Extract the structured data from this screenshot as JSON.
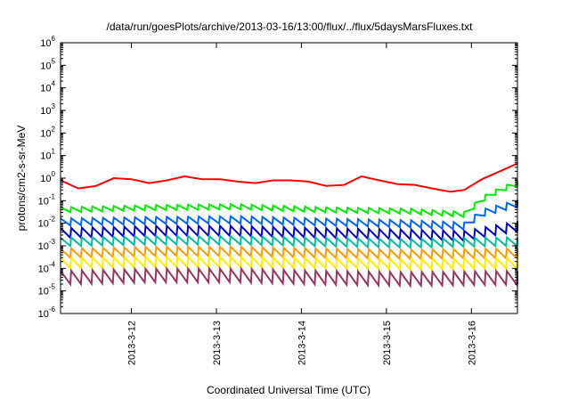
{
  "chart_data": {
    "type": "line",
    "title": "/data/run/goesPlots/archive/2013-03-16/13:00/flux/../flux/5daysMarsFluxes.txt",
    "xlabel": "Coordinated Universal Time (UTC)",
    "ylabel": "protons/cm2-s-sr-MeV",
    "yscale": "log",
    "ylim": [
      1e-06,
      1000000.0
    ],
    "xlim": [
      "2013-03-11 04:00",
      "2013-03-16 13:00"
    ],
    "grid": false,
    "legend": "none",
    "x_ticks": [
      "2013-3-12",
      "2013-3-13",
      "2013-3-14",
      "2013-3-15",
      "2013-3-16"
    ],
    "y_ticks": [
      {
        "base": "10",
        "exp": "-6"
      },
      {
        "base": "10",
        "exp": "-5"
      },
      {
        "base": "10",
        "exp": "-4"
      },
      {
        "base": "10",
        "exp": "-3"
      },
      {
        "base": "10",
        "exp": "-2"
      },
      {
        "base": "10",
        "exp": "-1"
      },
      {
        "base": "10",
        "exp": "0"
      },
      {
        "base": "10",
        "exp": "1"
      },
      {
        "base": "10",
        "exp": "2"
      },
      {
        "base": "10",
        "exp": "3"
      },
      {
        "base": "10",
        "exp": "4"
      },
      {
        "base": "10",
        "exp": "5"
      },
      {
        "base": "10",
        "exp": "6"
      }
    ],
    "series": [
      {
        "color": "#ff0000",
        "x": [
          "2013-03-11 04:00",
          "2013-03-11 09:00",
          "2013-03-11 14:00",
          "2013-03-11 19:00",
          "2013-03-12 00:00",
          "2013-03-12 05:00",
          "2013-03-12 10:00",
          "2013-03-12 15:00",
          "2013-03-12 20:00",
          "2013-03-13 01:00",
          "2013-03-13 06:00",
          "2013-03-13 11:00",
          "2013-03-13 16:00",
          "2013-03-13 21:00",
          "2013-03-14 02:00",
          "2013-03-14 07:00",
          "2013-03-14 12:00",
          "2013-03-14 17:00",
          "2013-03-14 22:00",
          "2013-03-15 03:00",
          "2013-03-15 08:00",
          "2013-03-15 13:00",
          "2013-03-15 18:00",
          "2013-03-15 22:00",
          "2013-03-16 03:00",
          "2013-03-16 08:00",
          "2013-03-16 13:00"
        ],
        "y": [
          0.8,
          0.35,
          0.45,
          1.0,
          0.9,
          0.6,
          0.8,
          1.2,
          0.9,
          0.9,
          0.7,
          0.6,
          0.8,
          0.8,
          0.7,
          0.45,
          0.5,
          1.2,
          0.8,
          0.55,
          0.5,
          0.35,
          0.25,
          0.3,
          0.9,
          2.0,
          4.5
        ]
      },
      {
        "color": "#00ee00",
        "x": [
          "2013-03-11 04:00",
          "2013-03-12 06:00",
          "2013-03-13 06:00",
          "2013-03-14 06:00",
          "2013-03-15 06:00",
          "2013-03-15 22:00",
          "2013-03-16 03:00",
          "2013-03-16 08:00",
          "2013-03-16 13:00"
        ],
        "y": [
          0.04,
          0.05,
          0.055,
          0.04,
          0.035,
          0.025,
          0.12,
          0.3,
          0.6
        ],
        "oscillation": [
          0.025,
          0.06
        ]
      },
      {
        "color": "#0066ff",
        "x": [
          "2013-03-11 04:00",
          "2013-03-12 06:00",
          "2013-03-13 06:00",
          "2013-03-14 06:00",
          "2013-03-15 06:00",
          "2013-03-15 22:00",
          "2013-03-16 03:00",
          "2013-03-16 13:00"
        ],
        "y": [
          0.012,
          0.014,
          0.015,
          0.012,
          0.01,
          0.008,
          0.03,
          0.08
        ],
        "oscillation": [
          0.006,
          0.02
        ]
      },
      {
        "color": "#0000cc",
        "x": [
          "2013-03-11 04:00",
          "2013-03-12 06:00",
          "2013-03-13 06:00",
          "2013-03-14 06:00",
          "2013-03-15 06:00",
          "2013-03-15 22:00",
          "2013-03-16 13:00"
        ],
        "y": [
          0.004,
          0.005,
          0.005,
          0.004,
          0.0035,
          0.003,
          0.008
        ],
        "oscillation": [
          0.0015,
          0.008
        ]
      },
      {
        "color": "#00c0a0",
        "x": [
          "2013-03-11 04:00",
          "2013-03-12 06:00",
          "2013-03-13 06:00",
          "2013-03-14 06:00",
          "2013-03-15 06:00",
          "2013-03-16 13:00"
        ],
        "y": [
          0.0015,
          0.0018,
          0.0018,
          0.0015,
          0.0013,
          0.0016
        ],
        "oscillation": [
          0.0007,
          0.003
        ]
      },
      {
        "color": "#ff9900",
        "x": [
          "2013-03-11 04:00",
          "2013-03-12 06:00",
          "2013-03-13 06:00",
          "2013-03-14 06:00",
          "2013-03-15 06:00",
          "2013-03-16 13:00"
        ],
        "y": [
          0.0005,
          0.0006,
          0.0006,
          0.0005,
          0.00045,
          0.0005
        ],
        "oscillation": [
          0.0002,
          0.001
        ]
      },
      {
        "color": "#ffee00",
        "x": [
          "2013-03-11 04:00",
          "2013-03-12 06:00",
          "2013-03-13 06:00",
          "2013-03-14 06:00",
          "2013-03-15 06:00",
          "2013-03-16 13:00"
        ],
        "y": [
          0.00018,
          0.0002,
          0.0002,
          0.00018,
          0.00016,
          0.00018
        ],
        "oscillation": [
          7e-05,
          0.0004
        ]
      },
      {
        "color": "#993366",
        "x": [
          "2013-03-11 04:00",
          "2013-03-12 06:00",
          "2013-03-13 06:00",
          "2013-03-14 06:00",
          "2013-03-15 06:00",
          "2013-03-16 13:00"
        ],
        "y": [
          4e-05,
          5e-05,
          5e-05,
          4e-05,
          3.5e-05,
          4e-05
        ],
        "oscillation": [
          1.2e-05,
          0.00012
        ]
      }
    ]
  }
}
